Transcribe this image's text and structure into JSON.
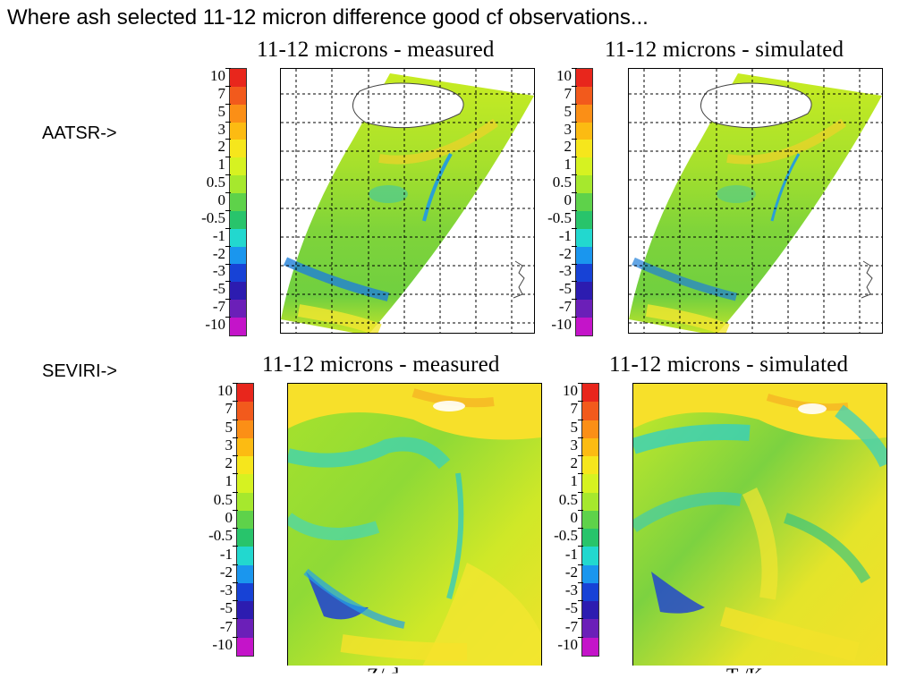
{
  "headline": "Where ash selected 11-12 micron difference good cf observations...",
  "rows": {
    "aatsr_label": "AATSR->",
    "seviri_label": "SEVIRI->"
  },
  "panels": {
    "aatsr_measured_title": "11-12 microns - measured",
    "aatsr_simulated_title": "11-12 microns - simulated",
    "seviri_measured_title": "11-12 microns - measured",
    "seviri_simulated_title": "11-12 microns - simulated"
  },
  "colorbar": {
    "ticks": [
      "10",
      "7",
      "5",
      "3",
      "2",
      "1",
      "0.5",
      "0",
      "-0.5",
      "-1",
      "-2",
      "-3",
      "-5",
      "-7",
      "-10"
    ],
    "colors": [
      "#e8261c",
      "#f25a1c",
      "#fb8f16",
      "#fcbb12",
      "#f6e61c",
      "#d6f221",
      "#a6e82d",
      "#5ed24a",
      "#28c46b",
      "#22d8cf",
      "#1a96ee",
      "#1742d6",
      "#2c1cb0",
      "#6b1fb8",
      "#c414c9"
    ]
  },
  "footer_fragments": [
    "Z/ d",
    "T /K"
  ]
}
